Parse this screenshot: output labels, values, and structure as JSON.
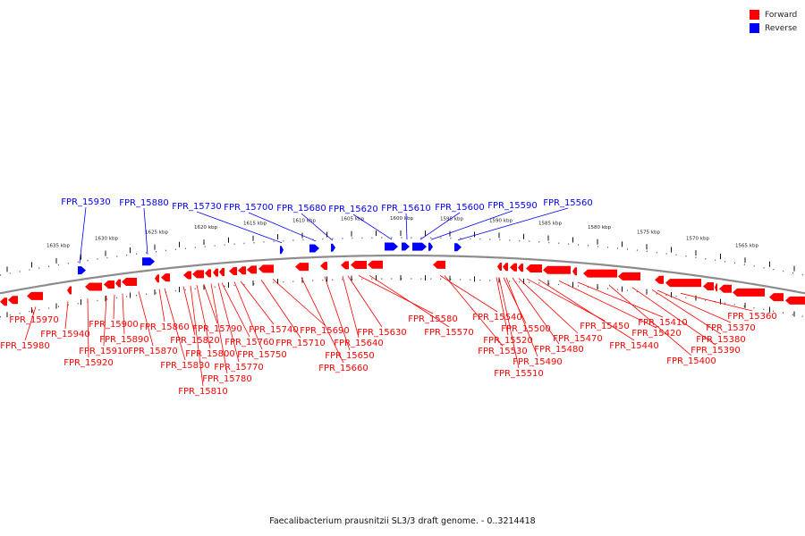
{
  "legend": {
    "forward_label": "Forward",
    "reverse_label": "Reverse",
    "forward_color": "#ff0000",
    "reverse_color": "#0000ff"
  },
  "caption": "Faecalibacterium prausnitzii SL3/3 draft genome. - 0..3214418",
  "tick_labels": [
    "1635 kbp",
    "1630 kbp",
    "1625 kbp",
    "1620 kbp",
    "1615 kbp",
    "1610 kbp",
    "1605 kbp",
    "1600 kbp",
    "1595 kbp",
    "1590 kbp",
    "1585 kbp",
    "1580 kbp",
    "1575 kbp",
    "1570 kbp",
    "1565 kbp"
  ],
  "reverse_genes": [
    "FPR_15930",
    "FPR_15880",
    "FPR_15730",
    "FPR_15700",
    "FPR_15680",
    "FPR_15620",
    "FPR_15610",
    "FPR_15600",
    "FPR_15590",
    "FPR_15560"
  ],
  "forward_genes": [
    "FPR_15970",
    "FPR_15980",
    "FPR_15940",
    "FPR_15920",
    "FPR_15910",
    "FPR_15900",
    "FPR_15890",
    "FPR_15870",
    "FPR_15860",
    "FPR_15830",
    "FPR_15820",
    "FPR_15810",
    "FPR_15800",
    "FPR_15790",
    "FPR_15780",
    "FPR_15770",
    "FPR_15760",
    "FPR_15750",
    "FPR_15740",
    "FPR_15710",
    "FPR_15690",
    "FPR_15660",
    "FPR_15650",
    "FPR_15640",
    "FPR_15630",
    "FPR_15580",
    "FPR_15570",
    "FPR_15540",
    "FPR_15530",
    "FPR_15520",
    "FPR_15510",
    "FPR_15500",
    "FPR_15490",
    "FPR_15480",
    "FPR_15470",
    "FPR_15450",
    "FPR_15440",
    "FPR_15420",
    "FPR_15410",
    "FPR_15400",
    "FPR_15390",
    "FPR_15380",
    "FPR_15370",
    "FPR_15360"
  ],
  "colors": {
    "backbone": "#8c8c8c",
    "forward": "#ff0000",
    "reverse": "#0000ff"
  }
}
